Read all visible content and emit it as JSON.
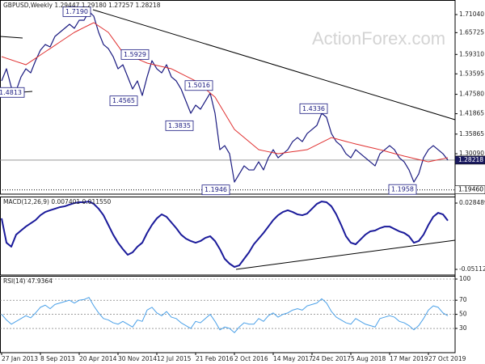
{
  "chart_data": {
    "type": "line",
    "watermark": "ActionForex.com",
    "categories": [
      "27 Jan 2013",
      null,
      null,
      null,
      null,
      null,
      null,
      null,
      "8 Sep 2013",
      null,
      null,
      null,
      null,
      null,
      null,
      null,
      "20 Apr 2014",
      null,
      null,
      null,
      null,
      null,
      null,
      null,
      "30 Nov 2014",
      null,
      null,
      null,
      null,
      null,
      null,
      null,
      "12 Jul 2015",
      null,
      null,
      null,
      null,
      null,
      null,
      null,
      "21 Feb 2016",
      null,
      null,
      null,
      null,
      null,
      null,
      null,
      "2 Oct 2016",
      null,
      null,
      null,
      null,
      null,
      null,
      null,
      "14 May 2017",
      null,
      null,
      null,
      null,
      null,
      null,
      null,
      "24 Dec 2017",
      null,
      null,
      null,
      null,
      null,
      null,
      null,
      "5 Aug 2018",
      null,
      null,
      null,
      null,
      null,
      null,
      null,
      "17 Mar 2019",
      null,
      null,
      null,
      null,
      null,
      null,
      null,
      "27 Oct 2019",
      null,
      null,
      null,
      null
    ],
    "panels": [
      {
        "title": "GBPUSD,Weekly  1.29447 1.29180 1.27257 1.28218",
        "ylim": [
          1.182,
          1.7533
        ],
        "yticks": [
          {
            "value": 1.7104,
            "label": "1.71040"
          },
          1.65725,
          {
            "value": 1.5931,
            "label": "1.59310"
          },
          1.53595,
          {
            "value": 1.4758,
            "label": "1.47580"
          },
          1.41865,
          1.35865,
          {
            "value": 1.3009,
            "label": "1.30090"
          }
        ],
        "levels": [
          {
            "value": 1.28218,
            "line": "solid",
            "fill": "#1a1a60"
          },
          {
            "value": 1.1946,
            "label": "1.19460",
            "line": "dotted",
            "fill": "#ffffff"
          }
        ],
        "annotations": [
          {
            "value": 1.719,
            "label": "1.7190"
          },
          1.5929,
          1.4565,
          1.5016,
          1.3835,
          1.4336,
          1.1946,
          1.1958,
          1.4813
        ],
        "series": [
          {
            "color": "#1a1a80",
            "line_width": 1.2,
            "values": [
              1.5152,
              1.5509,
              1.4962,
              1.4866,
              1.5271,
              1.5509,
              1.539,
              1.5747,
              1.6057,
              1.6223,
              1.6152,
              1.6462,
              1.6581,
              1.67,
              1.6819,
              1.67,
              1.6938,
              1.6938,
              1.72,
              1.7057,
              1.6581,
              1.6223,
              1.6104,
              1.5866,
              1.5509,
              1.5628,
              1.5271,
              1.4914,
              1.5152,
              1.4723,
              1.5271,
              1.5747,
              1.5509,
              1.539,
              1.5628,
              1.5271,
              1.5152,
              1.4914,
              1.4557,
              1.42,
              1.4438,
              1.4319,
              1.4557,
              1.4795,
              1.42,
              1.3128,
              1.3247,
              1.3009,
              1.2176,
              1.2414,
              1.2652,
              1.2533,
              1.2533,
              1.2771,
              1.2533,
              1.289,
              1.3128,
              1.289,
              1.3009,
              1.3128,
              1.3366,
              1.3485,
              1.3366,
              1.3604,
              1.3723,
              1.3843,
              1.42,
              1.4081,
              1.3604,
              1.3366,
              1.3247,
              1.3009,
              1.289,
              1.3128,
              1.3009,
              1.289,
              1.2771,
              1.2652,
              1.3009,
              1.3128,
              1.3247,
              1.3128,
              1.289,
              1.2771,
              1.2533,
              1.2176,
              1.2414,
              1.289,
              1.3128,
              1.3247,
              1.3128,
              1.3009,
              1.28218
            ]
          },
          {
            "color": "#e03030",
            "line_width": 1,
            "values": [
              1.5866,
              1.5818,
              1.5771,
              1.5723,
              1.5676,
              1.5628,
              1.5723,
              1.5818,
              1.5914,
              1.6009,
              1.6104,
              1.6199,
              1.6295,
              1.639,
              1.6486,
              1.6581,
              1.6652,
              1.6724,
              1.6795,
              1.6866,
              1.6771,
              1.6676,
              1.6581,
              1.6382,
              1.6184,
              1.5985,
              1.5923,
              1.5861,
              1.58,
              1.5738,
              1.5676,
              1.5643,
              1.5609,
              1.5576,
              1.5542,
              1.5509,
              1.5438,
              1.5366,
              1.5295,
              1.5223,
              1.5152,
              1.5033,
              1.4914,
              1.4795,
              1.4676,
              1.4438,
              1.42,
              1.3962,
              1.3724,
              1.3605,
              1.3486,
              1.3366,
              1.3247,
              1.3128,
              1.3098,
              1.3068,
              1.3039,
              1.3009,
              1.3029,
              1.3049,
              1.3069,
              1.3088,
              1.3108,
              1.3128,
              1.3199,
              1.3271,
              1.3342,
              1.3414,
              1.3485,
              1.3447,
              1.3409,
              1.3371,
              1.3333,
              1.3295,
              1.3262,
              1.3228,
              1.3195,
              1.3161,
              1.3128,
              1.309,
              1.3052,
              1.3014,
              1.2976,
              1.2938,
              1.2905,
              1.2871,
              1.2838,
              1.2804,
              1.2771,
              1.2801,
              1.2831,
              1.286,
              1.289
            ]
          }
        ]
      },
      {
        "title": "MACD(12,26,9) 0.007401 0.011550",
        "ylim": [
          -0.0579,
          0.0363
        ],
        "yticks": [
          0.028489,
          -0.051125
        ],
        "series": [
          {
            "color": "#1a1a9a",
            "line_width": 2,
            "values": [
              0.0101,
              -0.0191,
              -0.0239,
              -0.0094,
              -0.0045,
              0.0003,
              0.0042,
              0.0081,
              0.0139,
              0.0178,
              0.0198,
              0.0217,
              0.0236,
              0.0246,
              0.0266,
              0.0285,
              0.0295,
              0.0295,
              0.0304,
              0.0275,
              0.0217,
              0.0139,
              0.0023,
              -0.0094,
              -0.0191,
              -0.0268,
              -0.0336,
              -0.0307,
              -0.0239,
              -0.0191,
              -0.0074,
              0.0023,
              0.0101,
              0.0149,
              0.012,
              0.0052,
              -0.0016,
              -0.0094,
              -0.0142,
              -0.0171,
              -0.0191,
              -0.0171,
              -0.0133,
              -0.0113,
              -0.0171,
              -0.0268,
              -0.0385,
              -0.0443,
              -0.0482,
              -0.0463,
              -0.0385,
              -0.0307,
              -0.021,
              -0.0142,
              -0.0074,
              0.0003,
              0.0081,
              0.0139,
              0.0178,
              0.0198,
              0.0178,
              0.0149,
              0.0139,
              0.0159,
              0.0217,
              0.0275,
              0.0304,
              0.0295,
              0.0246,
              0.0149,
              0.0023,
              -0.0113,
              -0.0191,
              -0.021,
              -0.0152,
              -0.0094,
              -0.0055,
              -0.0045,
              -0.0016,
              0.0003,
              0.0003,
              -0.0026,
              -0.0055,
              -0.0074,
              -0.0113,
              -0.0191,
              -0.0171,
              -0.0094,
              0.0023,
              0.012,
              0.0168,
              0.0149,
              0.007401
            ]
          }
        ]
      },
      {
        "title": "RSI(14) 47.9364",
        "ylim": [
          -4.4,
          104.6
        ],
        "yticks": [
          100,
          70,
          50,
          30
        ],
        "grid": "dashed",
        "series": [
          {
            "color": "#4aa0e8",
            "line_width": 1,
            "values": [
              50,
              42,
              36,
              40,
              44,
              48,
              45,
              52,
              60,
              63,
              58,
              64,
              66,
              68,
              70,
              66,
              70,
              71,
              74,
              62,
              52,
              44,
              42,
              38,
              36,
              40,
              36,
              32,
              42,
              40,
              56,
              60,
              52,
              48,
              54,
              46,
              44,
              38,
              34,
              30,
              40,
              38,
              44,
              50,
              40,
              28,
              32,
              30,
              24,
              32,
              38,
              36,
              36,
              44,
              40,
              48,
              52,
              46,
              50,
              52,
              56,
              58,
              56,
              62,
              64,
              66,
              72,
              66,
              54,
              46,
              42,
              38,
              36,
              44,
              40,
              36,
              34,
              32,
              44,
              46,
              48,
              46,
              40,
              38,
              34,
              28,
              34,
              44,
              56,
              62,
              60,
              52,
              47.9364
            ]
          }
        ]
      }
    ]
  }
}
